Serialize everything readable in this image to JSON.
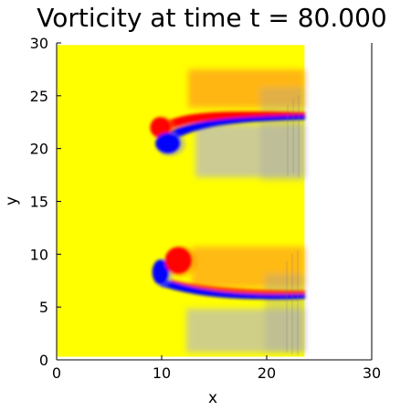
{
  "chart_data": {
    "type": "heatmap",
    "title": "Vorticity at time t = 80.000",
    "xlabel": "x",
    "ylabel": "y",
    "xlim": [
      0,
      30
    ],
    "ylim": [
      0,
      30
    ],
    "x_ticks": [
      0,
      10,
      20,
      30
    ],
    "y_ticks": [
      0,
      5,
      10,
      15,
      20,
      25,
      30
    ],
    "x_tick_labels": [
      "0",
      "10",
      "20",
      "30"
    ],
    "y_tick_labels": [
      "0",
      "5",
      "10",
      "15",
      "20",
      "25",
      "30"
    ],
    "grid": false,
    "legend": "none",
    "domain_x_extent": [
      0,
      23.6
    ],
    "domain_y_extent": [
      0.3,
      29.8
    ],
    "colormap": [
      "#0000ff",
      "#c8c8c8",
      "#ffff00",
      "#ff8000",
      "#ff0000"
    ],
    "background_value_color": "#ffff00",
    "features": [
      {
        "kind": "positive_vortex",
        "x": 9.9,
        "y": 22.0,
        "rx": 1.0,
        "ry": 1.0,
        "color": "#ff0000"
      },
      {
        "kind": "negative_vortex",
        "x": 10.6,
        "y": 20.5,
        "rx": 1.2,
        "ry": 1.0,
        "color": "#0000ff"
      },
      {
        "kind": "negative_vortex",
        "x": 9.9,
        "y": 8.3,
        "rx": 0.8,
        "ry": 1.2,
        "color": "#0000ff"
      },
      {
        "kind": "positive_vortex",
        "x": 11.6,
        "y": 9.4,
        "rx": 1.3,
        "ry": 1.3,
        "color": "#ff0000"
      },
      {
        "kind": "shear_layer_positive",
        "x0": 11.5,
        "x1": 23.6,
        "y0": 22.2,
        "y1": 23.1,
        "color": "#ff0000"
      },
      {
        "kind": "shear_layer_negative",
        "x0": 11.0,
        "x1": 23.6,
        "y0": 21.2,
        "y1": 22.9,
        "color": "#0000ff"
      },
      {
        "kind": "shear_layer_positive",
        "x0": 12.0,
        "x1": 23.6,
        "y0": 6.8,
        "y1": 6.6,
        "color": "#ff0000"
      },
      {
        "kind": "shear_layer_negative",
        "x0": 11.0,
        "x1": 23.6,
        "y0": 6.6,
        "y1": 6.2,
        "color": "#0000ff"
      }
    ]
  }
}
